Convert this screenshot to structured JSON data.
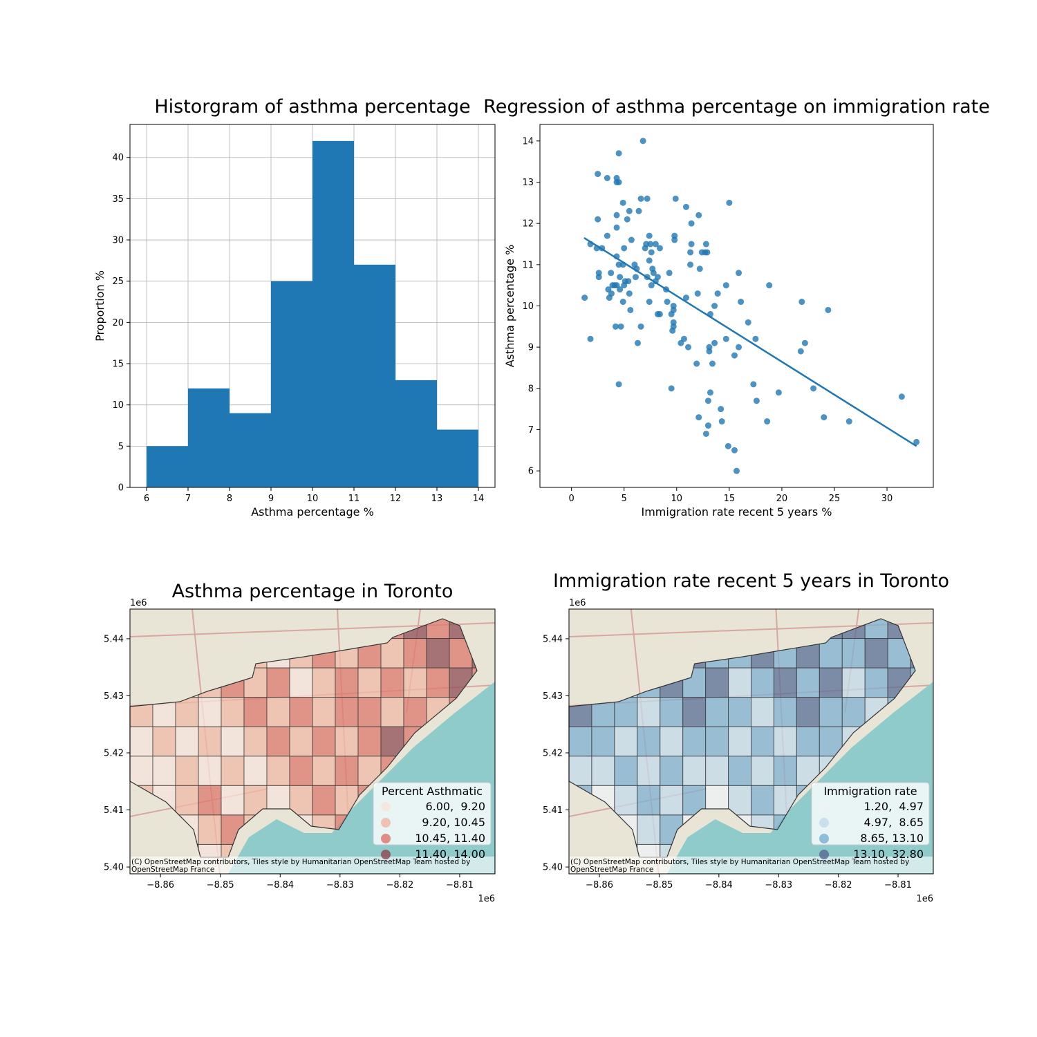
{
  "chart_data": [
    {
      "type": "histogram",
      "title": "Historgram of asthma percentage",
      "xlabel": "Asthma percentage %",
      "ylabel": "Proportion %",
      "bins": [
        6,
        7,
        8,
        9,
        10,
        11,
        12,
        13,
        14
      ],
      "counts": [
        5,
        12,
        9,
        25,
        42,
        27,
        13,
        7
      ],
      "color": "#1f77b4",
      "xlim": [
        5.6,
        14.4
      ],
      "ylim": [
        0,
        44
      ],
      "xticks": [
        6,
        7,
        8,
        9,
        10,
        11,
        12,
        13,
        14
      ],
      "yticks": [
        0,
        5,
        10,
        15,
        20,
        25,
        30,
        35,
        40
      ],
      "grid": true
    },
    {
      "type": "scatter",
      "title": "Regression of asthma percentage on immigration rate",
      "xlabel": "Immigration rate recent 5 years %",
      "ylabel": "Asthma percentage %",
      "color": "#1f77b4",
      "x": [
        1.25,
        1.8,
        1.8,
        2.5,
        2.4,
        2.5,
        2.6,
        2.6,
        2.9,
        3.4,
        3.4,
        3.5,
        3.6,
        3.75,
        3.8,
        3.9,
        4.1,
        4.2,
        4.3,
        4.3,
        4.3,
        4.3,
        4.3,
        4.3,
        4.5,
        4.5,
        4.5,
        4.5,
        4.6,
        4.6,
        4.7,
        4.9,
        4.9,
        5.0,
        4.9,
        5.0,
        5.1,
        5.3,
        5.4,
        5.5,
        5.5,
        5.6,
        5.7,
        6.0,
        6.1,
        6.2,
        6.3,
        6.4,
        6.6,
        6.6,
        6.8,
        7.0,
        7.1,
        7.2,
        7.2,
        7.4,
        7.4,
        7.4,
        7.5,
        7.6,
        7.6,
        7.7,
        7.8,
        8.0,
        8.0,
        8.2,
        8.4,
        8.4,
        8.2,
        9.0,
        9.1,
        9.3,
        9.5,
        9.5,
        9.6,
        9.7,
        9.7,
        9.7,
        9.8,
        9.8,
        9.7,
        9.9,
        10.4,
        10.7,
        10.9,
        10.9,
        11.1,
        11.3,
        11.3,
        11.4,
        11.4,
        11.9,
        12.0,
        12.1,
        12.1,
        12.2,
        12.4,
        12.7,
        12.8,
        12.8,
        12.9,
        13.0,
        13.0,
        13.1,
        13.1,
        13.2,
        13.2,
        13.4,
        13.6,
        13.6,
        13.9,
        14.2,
        14.3,
        14.7,
        14.7,
        14.9,
        15.0,
        15.5,
        15.5,
        15.7,
        15.9,
        15.9,
        16.1,
        16.8,
        17.3,
        17.5,
        17.6,
        18.6,
        18.8,
        19.7,
        21.9,
        21.8,
        22.2,
        23.0,
        24.0,
        24.4,
        26.4,
        31.4,
        32.8
      ],
      "y": [
        10.2,
        11.5,
        9.2,
        13.2,
        11.4,
        12.1,
        10.7,
        10.8,
        11.4,
        13.1,
        11.7,
        10.4,
        10.2,
        10.8,
        10.3,
        10.5,
        10.5,
        9.5,
        10.5,
        13.1,
        13.0,
        12.2,
        11.9,
        11.2,
        13.7,
        13.0,
        11.0,
        8.1,
        10.7,
        10.4,
        9.5,
        11.0,
        12.5,
        11.4,
        10.1,
        10.5,
        10.6,
        12.1,
        10.6,
        12.3,
        10.3,
        9.9,
        11.6,
        11.0,
        10.7,
        10.9,
        9.1,
        12.3,
        12.6,
        9.5,
        14.0,
        11.4,
        11.5,
        12.6,
        10.7,
        11.7,
        11.1,
        10.1,
        11.5,
        11.3,
        10.5,
        10.9,
        10.8,
        11.5,
        10.6,
        9.8,
        9.8,
        11.4,
        10.7,
        10.4,
        10.1,
        10.8,
        8.0,
        9.8,
        9.4,
        9.6,
        10.0,
        9.9,
        11.7,
        11.6,
        9.5,
        12.6,
        9.1,
        9.2,
        12.4,
        10.2,
        9.0,
        11.3,
        11.0,
        11.5,
        12.0,
        8.6,
        10.3,
        7.3,
        12.2,
        10.9,
        11.3,
        11.3,
        11.5,
        6.9,
        11.3,
        7.7,
        7.1,
        9.0,
        8.9,
        9.8,
        7.9,
        8.6,
        10.0,
        9.1,
        10.3,
        7.5,
        7.2,
        9.2,
        10.5,
        6.6,
        12.5,
        8.8,
        6.5,
        6.0,
        9.0,
        10.8,
        10.1,
        9.6,
        8.1,
        9.2,
        7.7,
        7.2,
        10.5,
        7.9,
        10.1,
        8.9,
        9.1,
        8.0,
        7.3,
        9.9,
        7.2,
        7.8,
        6.7
      ],
      "regression_line": {
        "x": [
          1.2,
          32.8
        ],
        "y": [
          11.65,
          6.6
        ]
      },
      "xlim": [
        -3.0,
        34.4
      ],
      "ylim": [
        5.6,
        14.4
      ],
      "xticks": [
        0,
        5,
        10,
        15,
        20,
        25,
        30
      ],
      "yticks": [
        6,
        7,
        8,
        9,
        10,
        11,
        12,
        13,
        14
      ]
    },
    {
      "type": "map",
      "title": "Asthma percentage in Toronto",
      "xlim": [
        -8.8651,
        -8.8041
      ],
      "ylim": [
        5.3988,
        5.4452
      ],
      "xticks": [
        {
          "value": -8.86,
          "label": "−8.86"
        },
        {
          "value": -8.85,
          "label": "−8.85"
        },
        {
          "value": -8.84,
          "label": "−8.84"
        },
        {
          "value": -8.83,
          "label": "−8.83"
        },
        {
          "value": -8.82,
          "label": "−8.82"
        },
        {
          "value": -8.81,
          "label": "−8.81"
        }
      ],
      "yticks": [
        {
          "value": 5.4,
          "label": "5.40"
        },
        {
          "value": 5.41,
          "label": "5.41"
        },
        {
          "value": 5.42,
          "label": "5.42"
        },
        {
          "value": 5.43,
          "label": "5.43"
        },
        {
          "value": 5.44,
          "label": "5.44"
        }
      ],
      "x_offset_label": "1e6",
      "y_offset_label": "1e6",
      "legend": {
        "title": "Percent Asthmatic",
        "corner": "lower right",
        "labels": [
          "6.00,  9.20",
          "9.20, 10.45",
          "10.45, 11.40",
          "11.40, 14.00"
        ],
        "colors": [
          "#f7e4dc",
          "#f0b9a6",
          "#de7a6e",
          "#8f4e55"
        ]
      },
      "attribution": [
        "(C) OpenStreetMap contributors, Tiles style by Humanitarian OpenStreetMap Team hosted by",
        "OpenStreetMap France"
      ]
    },
    {
      "type": "map",
      "title": "Immigration rate recent 5 years in Toronto",
      "xlim": [
        -8.8651,
        -8.8041
      ],
      "ylim": [
        5.3988,
        5.4452
      ],
      "xticks": [
        {
          "value": -8.86,
          "label": "−8.86"
        },
        {
          "value": -8.85,
          "label": "−8.85"
        },
        {
          "value": -8.84,
          "label": "−8.84"
        },
        {
          "value": -8.83,
          "label": "−8.83"
        },
        {
          "value": -8.82,
          "label": "−8.82"
        },
        {
          "value": -8.81,
          "label": "−8.81"
        }
      ],
      "yticks": [
        {
          "value": 5.4,
          "label": "5.40"
        },
        {
          "value": 5.41,
          "label": "5.41"
        },
        {
          "value": 5.42,
          "label": "5.42"
        },
        {
          "value": 5.43,
          "label": "5.43"
        },
        {
          "value": 5.44,
          "label": "5.44"
        }
      ],
      "x_offset_label": "1e6",
      "y_offset_label": "1e6",
      "legend": {
        "title": "Immigration rate",
        "corner": "lower right",
        "labels": [
          "1.20,  4.97",
          "4.97,  8.65",
          "8.65, 13.10",
          "13.10, 32.80"
        ],
        "colors": [
          "#eef3f6",
          "#c3dbea",
          "#7fb2d3",
          "#5a6f96"
        ]
      },
      "attribution": [
        "(C) OpenStreetMap contributors, Tiles style by Humanitarian OpenStreetMap Team hosted by",
        "OpenStreetMap France"
      ]
    }
  ]
}
